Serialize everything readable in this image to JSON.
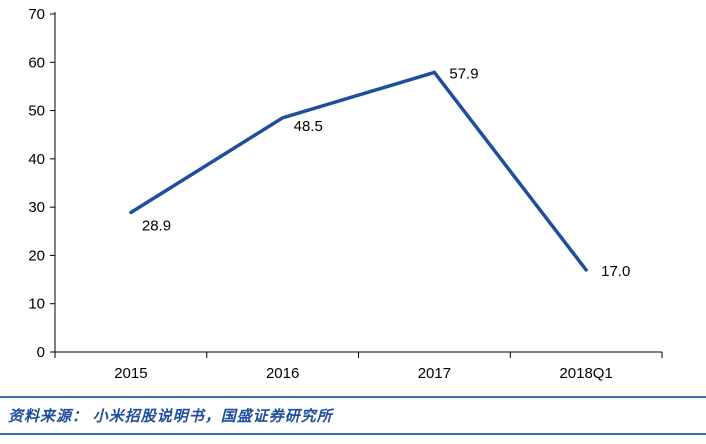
{
  "chart_data": {
    "type": "line",
    "categories": [
      "2015",
      "2016",
      "2017",
      "2018Q1"
    ],
    "values": [
      28.9,
      48.5,
      57.9,
      17.0
    ],
    "data_labels": [
      "28.9",
      "48.5",
      "57.9",
      "17.0"
    ],
    "title": "",
    "xlabel": "",
    "ylabel": "",
    "ylim": [
      0,
      70
    ],
    "y_tick_step": 10,
    "y_tick_labels": [
      "0",
      "10",
      "20",
      "30",
      "40",
      "50",
      "60",
      "70"
    ],
    "grid": false,
    "legend": "none",
    "line_color": "#1F4E9C",
    "axis_color": "#000000",
    "label_color": "#000000"
  },
  "footer": {
    "source_text": "资料来源： 小米招股说明书，国盛证券研究所",
    "rule_color": "#2E75B6"
  }
}
